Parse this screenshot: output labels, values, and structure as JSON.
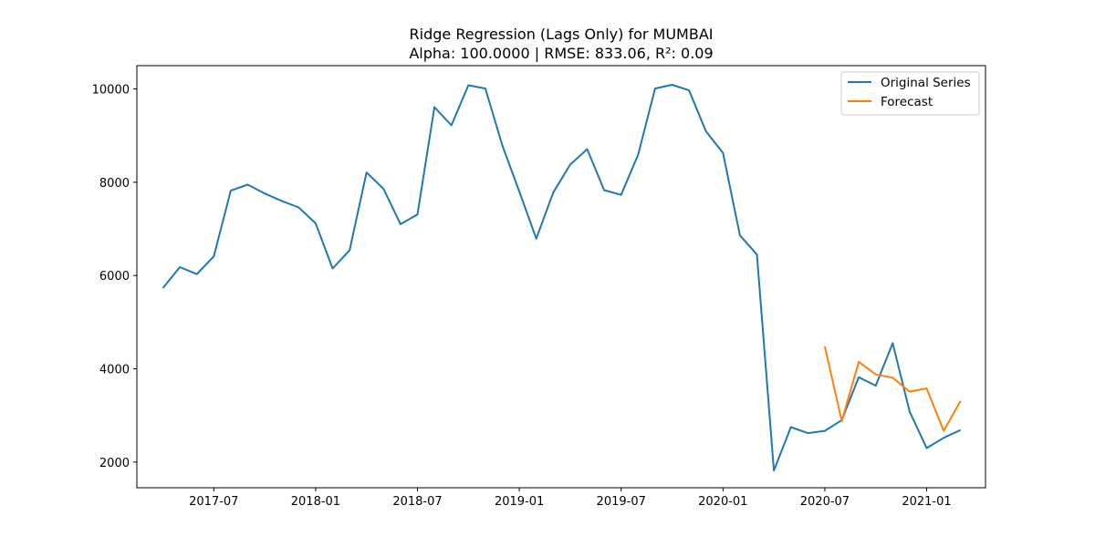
{
  "chart_data": {
    "type": "line",
    "title": "Ridge Regression (Lags Only) for MUMBAI",
    "subtitle": "Alpha: 100.0000 | RMSE: 833.06, R²: 0.09",
    "xlabel": "",
    "ylabel": "",
    "x_range": [
      "2017-02-15",
      "2021-04-15"
    ],
    "ylim": [
      1450,
      10500
    ],
    "x_ticks": [
      "2017-07",
      "2018-01",
      "2018-07",
      "2019-01",
      "2019-07",
      "2020-01",
      "2020-07",
      "2021-01"
    ],
    "y_ticks": [
      2000,
      4000,
      6000,
      8000,
      10000
    ],
    "grid": false,
    "legend": "top-right",
    "series": [
      {
        "name": "Original Series",
        "color": "#1f77b4",
        "x": [
          "2017-04",
          "2017-05",
          "2017-06",
          "2017-07",
          "2017-08",
          "2017-09",
          "2017-10",
          "2017-11",
          "2017-12",
          "2018-01",
          "2018-02",
          "2018-03",
          "2018-04",
          "2018-05",
          "2018-06",
          "2018-07",
          "2018-08",
          "2018-09",
          "2018-10",
          "2018-11",
          "2018-12",
          "2019-01",
          "2019-02",
          "2019-03",
          "2019-04",
          "2019-05",
          "2019-06",
          "2019-07",
          "2019-08",
          "2019-09",
          "2019-10",
          "2019-11",
          "2019-12",
          "2020-01",
          "2020-02",
          "2020-03",
          "2020-04",
          "2020-05",
          "2020-06",
          "2020-07",
          "2020-08",
          "2020-09",
          "2020-10",
          "2020-11",
          "2020-12",
          "2021-01",
          "2021-02",
          "2021-03"
        ],
        "values": [
          5730,
          6180,
          6030,
          6410,
          7820,
          7950,
          7760,
          7600,
          7460,
          7120,
          6150,
          6540,
          8210,
          7860,
          7100,
          7310,
          9610,
          9220,
          10080,
          10010,
          8790,
          7800,
          6790,
          7780,
          8380,
          8710,
          7830,
          7730,
          8590,
          10010,
          10090,
          9970,
          9090,
          8630,
          6860,
          6450,
          1820,
          2750,
          2620,
          2670,
          2900,
          3820,
          3640,
          4550,
          3080,
          2300,
          2520,
          2690
        ]
      },
      {
        "name": "Forecast",
        "color": "#ff7f0e",
        "x": [
          "2020-07",
          "2020-08",
          "2020-09",
          "2020-10",
          "2020-11",
          "2020-12",
          "2021-01",
          "2021-02",
          "2021-03"
        ],
        "values": [
          4480,
          2880,
          4150,
          3880,
          3810,
          3510,
          3580,
          2670,
          3310
        ]
      }
    ]
  }
}
